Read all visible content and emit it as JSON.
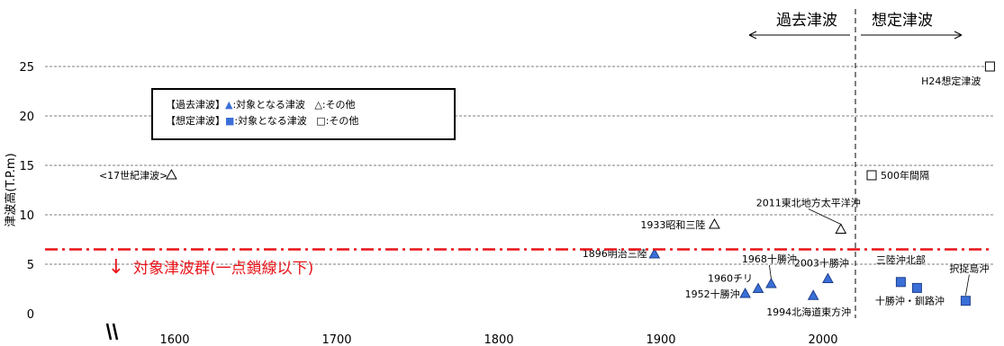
{
  "chart_data": {
    "type": "scatter",
    "ylabel": "津波高(T.P.m)",
    "xlim": [
      1520,
      2105
    ],
    "ylim": [
      0,
      25
    ],
    "xticks": [
      1600,
      1700,
      1800,
      1900,
      2000
    ],
    "yticks": [
      0,
      5,
      10,
      15,
      20,
      25
    ],
    "grid_y": true,
    "colors": {
      "filled": "#3a6fd8",
      "threshold_line": "#e8141a"
    },
    "period_labels": {
      "past": "過去津波",
      "assumed": "想定津波"
    },
    "period_divider_x": 2020,
    "threshold": {
      "y": 6.5,
      "label": "対象津波群(一点鎖線以下)",
      "arrow": "↓"
    },
    "legend": {
      "row1": {
        "prefix": "【過去津波】",
        "filled_symbol": "▲",
        "filled_text": ":対象となる津波",
        "open_symbol": "△",
        "open_text": ":その他"
      },
      "row2": {
        "prefix": "【想定津波】",
        "filled_symbol": "■",
        "filled_text": ":対象となる津波",
        "open_symbol": "□",
        "open_text": ":その他"
      }
    },
    "points": [
      {
        "label": "1896明治三陸",
        "x": 1896,
        "y": 6.0,
        "marker": "triangle",
        "filled": true
      },
      {
        "label": "1933昭和三陸",
        "x": 1933,
        "y": 9.0,
        "marker": "triangle",
        "filled": false
      },
      {
        "label": "1952十勝沖",
        "x": 1952,
        "y": 2.0,
        "marker": "triangle",
        "filled": true
      },
      {
        "label": "1960チリ",
        "x": 1960,
        "y": 2.5,
        "marker": "triangle",
        "filled": true
      },
      {
        "label": "1968十勝沖",
        "x": 1968,
        "y": 3.0,
        "marker": "triangle",
        "filled": true
      },
      {
        "label": "1994北海道東方沖",
        "x": 1994,
        "y": 1.8,
        "marker": "triangle",
        "filled": true
      },
      {
        "label": "2003十勝沖",
        "x": 2003,
        "y": 3.5,
        "marker": "triangle",
        "filled": true
      },
      {
        "label": "2011東北地方太平洋沖",
        "x": 2011,
        "y": 8.5,
        "marker": "triangle",
        "filled": false
      },
      {
        "label": "<17世紀津波>",
        "x": 1598,
        "y": 14.0,
        "marker": "triangle",
        "filled": false
      },
      {
        "label": "500年間隔",
        "x": 2030,
        "y": 14.0,
        "marker": "square",
        "filled": false
      },
      {
        "label": "H24想定津波",
        "x": 2103,
        "y": 25.0,
        "marker": "square",
        "filled": false
      },
      {
        "label": "三陸沖北部",
        "x": 2048,
        "y": 3.2,
        "marker": "square",
        "filled": true
      },
      {
        "label": "十勝沖・釧路沖",
        "x": 2058,
        "y": 2.6,
        "marker": "square",
        "filled": true
      },
      {
        "label": "択捉島沖",
        "x": 2088,
        "y": 1.3,
        "marker": "square",
        "filled": true
      }
    ]
  }
}
